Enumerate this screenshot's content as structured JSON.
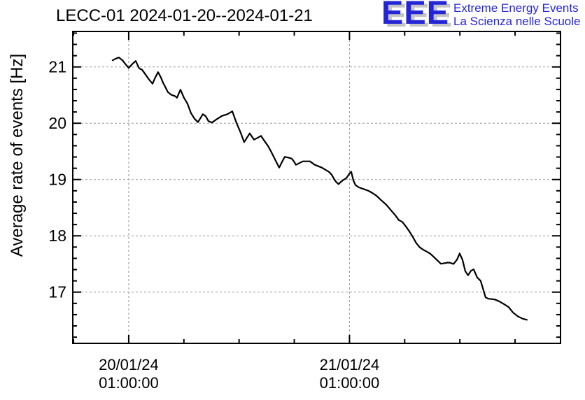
{
  "title": "LECC-01 2024-01-20--2024-01-21",
  "logo": {
    "letters": "EEE",
    "line1": "Extreme Energy Events",
    "line2": "La Scienza nelle Scuole",
    "blue": "#2525d8",
    "shadow": "#c4c4c4"
  },
  "chart_data": {
    "type": "line",
    "title": "LECC-01 2024-01-20--2024-01-21",
    "ylabel": "Average rate of events [Hz]",
    "xlabel": "",
    "x_unit": "hours since 2024-01-20 00:00",
    "xlim": [
      -5.08,
      47.94
    ],
    "ylim": [
      16.09,
      21.63
    ],
    "grid": true,
    "legend": "none",
    "line_color": "#000000",
    "grid_color": "#999999",
    "frame_color": "#000000",
    "y_major_ticks": [
      17,
      18,
      19,
      20,
      21
    ],
    "y_minor_step": 0.2,
    "x_major_ticks": [
      {
        "t": 1,
        "label_line1": "20/01/24",
        "label_line2": "01:00:00"
      },
      {
        "t": 25,
        "label_line1": "21/01/24",
        "label_line2": "01:00:00"
      }
    ],
    "x_minor_step_hours": 6,
    "points": [
      [
        -0.75,
        21.118
      ],
      [
        -0.37,
        21.149
      ],
      [
        -0.07,
        21.168
      ],
      [
        0.32,
        21.118
      ],
      [
        0.62,
        21.056
      ],
      [
        1.0,
        20.981
      ],
      [
        1.38,
        21.05
      ],
      [
        1.76,
        21.106
      ],
      [
        2.14,
        20.975
      ],
      [
        2.45,
        20.95
      ],
      [
        2.83,
        20.863
      ],
      [
        3.21,
        20.776
      ],
      [
        3.59,
        20.702
      ],
      [
        3.89,
        20.814
      ],
      [
        4.19,
        20.907
      ],
      [
        4.5,
        20.814
      ],
      [
        4.73,
        20.72
      ],
      [
        5.03,
        20.627
      ],
      [
        5.26,
        20.553
      ],
      [
        5.64,
        20.503
      ],
      [
        6.02,
        20.484
      ],
      [
        6.25,
        20.453
      ],
      [
        6.63,
        20.596
      ],
      [
        7.01,
        20.453
      ],
      [
        7.39,
        20.348
      ],
      [
        7.77,
        20.18
      ],
      [
        8.15,
        20.081
      ],
      [
        8.53,
        20.019
      ],
      [
        9.06,
        20.161
      ],
      [
        9.37,
        20.124
      ],
      [
        9.67,
        20.037
      ],
      [
        10.05,
        20.012
      ],
      [
        10.43,
        20.056
      ],
      [
        11.12,
        20.13
      ],
      [
        11.73,
        20.161
      ],
      [
        12.26,
        20.211
      ],
      [
        12.71,
        20.006
      ],
      [
        13.17,
        19.832
      ],
      [
        13.55,
        19.665
      ],
      [
        13.86,
        19.745
      ],
      [
        14.16,
        19.82
      ],
      [
        14.62,
        19.708
      ],
      [
        15.0,
        19.739
      ],
      [
        15.38,
        19.776
      ],
      [
        15.76,
        19.683
      ],
      [
        16.14,
        19.596
      ],
      [
        16.44,
        19.509
      ],
      [
        16.82,
        19.385
      ],
      [
        17.36,
        19.211
      ],
      [
        17.66,
        19.31
      ],
      [
        17.96,
        19.403
      ],
      [
        18.34,
        19.391
      ],
      [
        18.72,
        19.372
      ],
      [
        18.95,
        19.323
      ],
      [
        19.18,
        19.261
      ],
      [
        19.56,
        19.292
      ],
      [
        19.94,
        19.323
      ],
      [
        20.32,
        19.323
      ],
      [
        20.7,
        19.323
      ],
      [
        21.23,
        19.261
      ],
      [
        21.61,
        19.236
      ],
      [
        21.99,
        19.211
      ],
      [
        22.37,
        19.174
      ],
      [
        22.76,
        19.137
      ],
      [
        23.06,
        19.087
      ],
      [
        23.36,
        19.0
      ],
      [
        23.59,
        18.95
      ],
      [
        23.82,
        18.919
      ],
      [
        24.05,
        18.957
      ],
      [
        24.35,
        18.994
      ],
      [
        24.66,
        19.025
      ],
      [
        24.96,
        19.099
      ],
      [
        25.19,
        19.14
      ],
      [
        25.42,
        18.984
      ],
      [
        25.65,
        18.901
      ],
      [
        26.03,
        18.86
      ],
      [
        26.56,
        18.83
      ],
      [
        27.09,
        18.798
      ],
      [
        27.55,
        18.755
      ],
      [
        27.93,
        18.714
      ],
      [
        28.46,
        18.631
      ],
      [
        28.99,
        18.553
      ],
      [
        29.45,
        18.466
      ],
      [
        29.98,
        18.366
      ],
      [
        30.36,
        18.28
      ],
      [
        30.74,
        18.248
      ],
      [
        31.12,
        18.168
      ],
      [
        31.5,
        18.081
      ],
      [
        31.88,
        17.981
      ],
      [
        32.26,
        17.87
      ],
      [
        32.64,
        17.795
      ],
      [
        33.02,
        17.752
      ],
      [
        33.4,
        17.72
      ],
      [
        33.78,
        17.683
      ],
      [
        34.16,
        17.627
      ],
      [
        34.55,
        17.565
      ],
      [
        34.93,
        17.503
      ],
      [
        35.31,
        17.513
      ],
      [
        35.69,
        17.525
      ],
      [
        35.92,
        17.522
      ],
      [
        36.3,
        17.5
      ],
      [
        36.68,
        17.575
      ],
      [
        36.98,
        17.687
      ],
      [
        37.29,
        17.571
      ],
      [
        37.59,
        17.373
      ],
      [
        37.89,
        17.298
      ],
      [
        38.2,
        17.379
      ],
      [
        38.5,
        17.404
      ],
      [
        38.88,
        17.261
      ],
      [
        39.26,
        17.199
      ],
      [
        39.49,
        17.075
      ],
      [
        39.79,
        16.907
      ],
      [
        40.1,
        16.882
      ],
      [
        40.48,
        16.876
      ],
      [
        40.78,
        16.87
      ],
      [
        41.24,
        16.839
      ],
      [
        41.77,
        16.789
      ],
      [
        42.3,
        16.733
      ],
      [
        42.76,
        16.64
      ],
      [
        43.29,
        16.571
      ],
      [
        43.82,
        16.528
      ],
      [
        44.28,
        16.509
      ]
    ]
  }
}
